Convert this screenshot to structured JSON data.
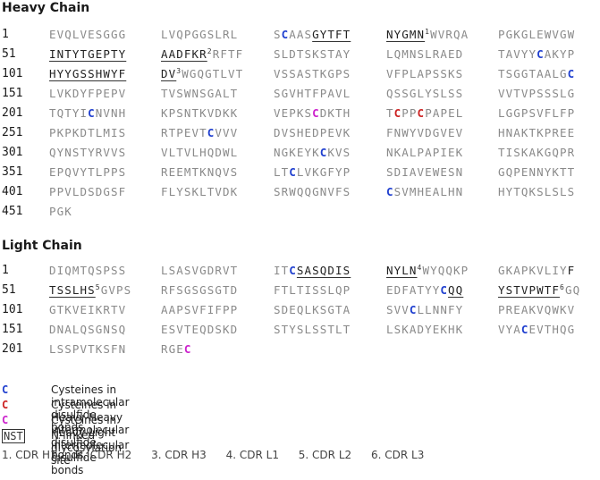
{
  "heavy": {
    "title": "Heavy Chain",
    "rows": [
      {
        "num": "1",
        "groups": [
          "EVQLVESGGG",
          "LVQPGGSLRL",
          "SCAASGYTFT",
          "NYGMN¹WVRQA",
          "PGKGLEWVGW"
        ]
      },
      {
        "num": "51",
        "groups": [
          "INTYTGEPTY",
          "AADFKR²RFTF",
          "SLDTSKSTAY",
          "LQMNSLRAED",
          "TAVYYCAKYP"
        ]
      },
      {
        "num": "101",
        "groups": [
          "HYYGSSHWYF",
          "DV³WGQGTLVT",
          "VSSASTKGPS",
          "VFPLAPSSKS",
          "TSGGTAALGC"
        ]
      },
      {
        "num": "151",
        "groups": [
          "LVKDYFPEPV",
          "TVSWNSGALT",
          "SGVHTFPAVL",
          "QSSGLYSLSS",
          "VVTVPSSSLG"
        ]
      },
      {
        "num": "201",
        "groups": [
          "TQTYICNVNH",
          "KPSNTKVDKK",
          "VEPKSCDKTH",
          "TCPPCPAPEL",
          "LGGPSVFLFP"
        ]
      },
      {
        "num": "251",
        "groups": [
          "PKPKDTLMIS",
          "RTPEVTCVVV",
          "DVSHEDPEVK",
          "FNWYVDGVEV",
          "HNAKTKPREE"
        ]
      },
      {
        "num": "301",
        "groups": [
          "QYNSTYRVVS",
          "VLTVLHQDWL",
          "NGKEYKCKVS",
          "NKALPAPIEK",
          "TISKAKGQPR"
        ]
      },
      {
        "num": "351",
        "groups": [
          "EPQVYTLPPS",
          "REEMTKNQVS",
          "LTCLVKGFYP",
          "SDIAVEWESN",
          "GQPENNYKTT"
        ]
      },
      {
        "num": "401",
        "groups": [
          "PPVLDSDGSF",
          "FLYSKLTVDK",
          "SRWQQGNVFS",
          "CSVMHEALHN",
          "HYTQKSLSLS"
        ]
      },
      {
        "num": "451",
        "groups": [
          "PGK"
        ]
      }
    ]
  },
  "light": {
    "title": "Light Chain",
    "rows": [
      {
        "num": "1",
        "groups": [
          "DIQMTQSPSS",
          "LSASVGDRVT",
          "ITCSASQDIS",
          "NYLN⁴WYQQKP",
          "GKAPKVLIYF"
        ]
      },
      {
        "num": "51",
        "groups": [
          "TSSLHS⁵GVPS",
          "RFSGSGSGTD",
          "FTLTISSLQP",
          "EDFATYYCQQ",
          "YSTVPWTF⁶GQ"
        ]
      },
      {
        "num": "101",
        "groups": [
          "GTKVEIKRTV",
          "AAPSVFIFPP",
          "SDEQLKSGTA",
          "SVVCLLNNFY",
          "PREAKVQWKV"
        ]
      },
      {
        "num": "151",
        "groups": [
          "DNALQSGNSQ",
          "ESVTEQDSKD",
          "STYSLSSTLT",
          "LSKADYEKHK",
          "VYACEVTHQG"
        ]
      },
      {
        "num": "201",
        "groups": [
          "LSSPVTKSFN",
          "RGEC"
        ]
      }
    ]
  },
  "legend": [
    {
      "key": "C",
      "color": "#1f3fcf",
      "text": "Cysteines in intramolecular disulfide bonds"
    },
    {
      "key": "C",
      "color": "#cc2222",
      "text": "Cysteines in Heavy-Heavy intermolecular disulfide bonds"
    },
    {
      "key": "C",
      "color": "#cc22cc",
      "text": "Cysteines in Heavy-Light intermolecular disulfide bonds"
    },
    {
      "key": "NST",
      "color": "#333333",
      "text": "N-linked glycosylation site"
    }
  ],
  "cdrs": [
    "1. CDR H1",
    "2. CDR H2",
    "3. CDR H3",
    "4. CDR L1",
    "5. CDR L2",
    "6. CDR L3"
  ]
}
